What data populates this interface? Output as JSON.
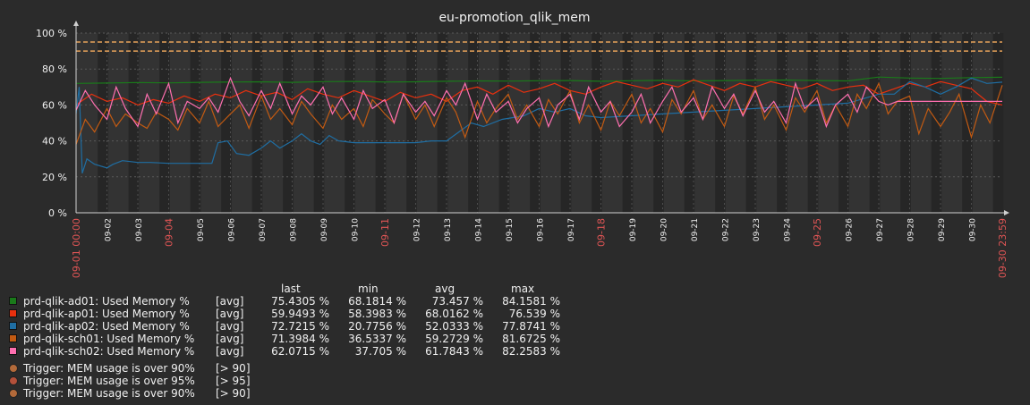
{
  "chart_data": {
    "type": "line",
    "title": "eu-promotion_qlik_mem",
    "ylim": [
      0,
      100
    ],
    "y_ticks": [
      "0 %",
      "20 %",
      "40 %",
      "60 %",
      "80 %",
      "100 %"
    ],
    "y_tick_values": [
      0,
      20,
      40,
      60,
      80,
      100
    ],
    "x_start_label": "09-01 00:00",
    "x_end_label": "09-30 23:59",
    "x_day_labels": [
      "09-02",
      "09-03",
      "09-04",
      "09-05",
      "09-06",
      "09-07",
      "09-08",
      "09-09",
      "09-10",
      "09-11",
      "09-12",
      "09-13",
      "09-14",
      "09-15",
      "09-16",
      "09-17",
      "09-18",
      "09-19",
      "09-20",
      "09-21",
      "09-22",
      "09-23",
      "09-24",
      "09-25",
      "09-26",
      "09-27",
      "09-28",
      "09-29",
      "09-30"
    ],
    "x_highlight_labels": [
      "09-01 00:00",
      "09-04",
      "09-11",
      "09-18",
      "09-25",
      "09-30 23:59"
    ],
    "grid": true,
    "thresholds": [
      {
        "value": 95,
        "color": "#e8a35a"
      },
      {
        "value": 90,
        "color": "#e8a35a"
      }
    ],
    "series": [
      {
        "name": "prd-qlik-ad01: Used Memory %",
        "color": "#1a7a1a",
        "x": [
          0,
          1,
          2,
          3,
          4,
          5,
          6,
          7,
          8,
          9,
          10,
          11,
          12,
          13,
          14,
          15,
          16,
          17,
          18,
          19,
          20,
          21,
          22,
          23,
          24,
          25,
          26,
          27,
          28,
          29,
          30
        ],
        "y": [
          72,
          72.2,
          72.5,
          72.3,
          72.6,
          72.8,
          72.9,
          72.6,
          73,
          73.1,
          72.8,
          72.9,
          73.2,
          73.4,
          73.3,
          73.5,
          73.6,
          73.2,
          73.5,
          73.7,
          73.4,
          73.6,
          73.8,
          73.9,
          73.6,
          73.4,
          75.5,
          75,
          74.8,
          75.2,
          75.4
        ]
      },
      {
        "name": "prd-qlik-ap01: Used Memory %",
        "color": "#e8300e",
        "x": [
          0,
          0.5,
          1,
          1.5,
          2,
          2.5,
          3,
          3.5,
          4,
          4.5,
          5,
          5.5,
          6,
          6.5,
          7,
          7.5,
          8,
          8.5,
          9,
          9.5,
          10,
          10.5,
          11,
          11.5,
          12,
          12.5,
          13,
          13.5,
          14,
          14.5,
          15,
          15.5,
          16,
          16.5,
          17,
          17.5,
          18,
          18.5,
          19,
          19.5,
          20,
          20.5,
          21,
          21.5,
          22,
          22.5,
          23,
          23.5,
          24,
          24.5,
          25,
          25.5,
          26,
          26.5,
          27,
          27.5,
          28,
          28.5,
          29,
          29.5,
          30
        ],
        "y": [
          60,
          66,
          62,
          64,
          60,
          63,
          61,
          65,
          62,
          66,
          64,
          68,
          65,
          67,
          63,
          69,
          66,
          64,
          68,
          65,
          62,
          67,
          64,
          66,
          62,
          68,
          70,
          66,
          71,
          67,
          69,
          72,
          68,
          66,
          70,
          73,
          71,
          69,
          72,
          70,
          74,
          71,
          68,
          72,
          70,
          73,
          71,
          69,
          72,
          68,
          70,
          71,
          66,
          69,
          72,
          70,
          73,
          71,
          69,
          62,
          60
        ]
      },
      {
        "name": "prd-qlik-ap02: Used Memory %",
        "color": "#1f6ea3",
        "x": [
          0,
          0.1,
          0.2,
          0.35,
          0.6,
          1,
          1.2,
          1.5,
          2,
          2.4,
          3,
          3.5,
          4,
          4.4,
          4.6,
          4.9,
          5.2,
          5.6,
          6,
          6.3,
          6.6,
          7,
          7.3,
          7.6,
          7.9,
          8.2,
          8.5,
          9,
          10,
          11,
          11.5,
          12,
          12.4,
          12.8,
          13.2,
          13.8,
          14.5,
          15,
          15.5,
          16,
          16.5,
          17,
          18,
          19,
          20,
          21,
          22,
          23,
          24,
          25,
          26,
          26.5,
          27,
          27.5,
          28,
          28.5,
          29,
          29.5,
          30
        ],
        "y": [
          55,
          70,
          22,
          30,
          27,
          25,
          27,
          29,
          28,
          28,
          27.5,
          27.5,
          27.5,
          27.5,
          39,
          40,
          33,
          32,
          36,
          40,
          36,
          40,
          44,
          40,
          38,
          43,
          40,
          39,
          39,
          39,
          40,
          40,
          45,
          50,
          48,
          52,
          54,
          58,
          56,
          58,
          54,
          53,
          54,
          55,
          56,
          57,
          58,
          59,
          60,
          61,
          66,
          66,
          73,
          70,
          66,
          70,
          75,
          72,
          72.7
        ]
      },
      {
        "name": "prd-qlik-sch01: Used Memory %",
        "color": "#c25a12",
        "x": [
          0,
          0.3,
          0.6,
          1,
          1.3,
          1.6,
          2,
          2.3,
          2.6,
          3,
          3.3,
          3.6,
          4,
          4.3,
          4.6,
          5,
          5.3,
          5.6,
          6,
          6.3,
          6.6,
          7,
          7.3,
          7.6,
          8,
          8.3,
          8.6,
          9,
          9.3,
          9.6,
          10,
          10.3,
          10.6,
          11,
          11.3,
          11.6,
          12,
          12.3,
          12.6,
          13,
          13.3,
          13.6,
          14,
          14.3,
          14.6,
          15,
          15.3,
          15.6,
          16,
          16.3,
          16.6,
          17,
          17.3,
          17.6,
          18,
          18.3,
          18.6,
          19,
          19.3,
          19.6,
          20,
          20.3,
          20.6,
          21,
          21.3,
          21.6,
          22,
          22.3,
          22.6,
          23,
          23.3,
          23.6,
          24,
          24.3,
          24.6,
          25,
          25.3,
          25.6,
          26,
          26.3,
          26.6,
          27,
          27.3,
          27.6,
          28,
          28.3,
          28.6,
          29,
          29.3,
          29.6,
          30
        ],
        "y": [
          38,
          52,
          45,
          58,
          48,
          55,
          50,
          47,
          56,
          52,
          46,
          58,
          50,
          62,
          48,
          55,
          60,
          47,
          65,
          52,
          58,
          49,
          62,
          55,
          47,
          60,
          52,
          58,
          48,
          63,
          55,
          50,
          66,
          52,
          60,
          48,
          64,
          56,
          42,
          62,
          50,
          58,
          66,
          52,
          60,
          48,
          63,
          55,
          68,
          50,
          60,
          46,
          62,
          54,
          66,
          50,
          58,
          45,
          63,
          55,
          68,
          52,
          60,
          48,
          65,
          55,
          70,
          52,
          60,
          46,
          64,
          56,
          68,
          50,
          60,
          48,
          66,
          58,
          72,
          55,
          62,
          65,
          44,
          58,
          48,
          56,
          66,
          42,
          60,
          50,
          71
        ]
      },
      {
        "name": "prd-qlik-sch02: Used Memory %",
        "color": "#ff6fb0",
        "x": [
          0,
          0.3,
          0.6,
          1,
          1.3,
          1.6,
          2,
          2.3,
          2.6,
          3,
          3.3,
          3.6,
          4,
          4.3,
          4.6,
          5,
          5.3,
          5.6,
          6,
          6.3,
          6.6,
          7,
          7.3,
          7.6,
          8,
          8.3,
          8.6,
          9,
          9.3,
          9.6,
          10,
          10.3,
          10.6,
          11,
          11.3,
          11.6,
          12,
          12.3,
          12.6,
          13,
          13.3,
          13.6,
          14,
          14.3,
          14.6,
          15,
          15.3,
          15.6,
          16,
          16.3,
          16.6,
          17,
          17.3,
          17.6,
          18,
          18.3,
          18.6,
          19,
          19.3,
          19.6,
          20,
          20.3,
          20.6,
          21,
          21.3,
          21.6,
          22,
          22.3,
          22.6,
          23,
          23.3,
          23.6,
          24,
          24.3,
          24.6,
          25,
          25.3,
          25.6,
          26,
          26.3,
          26.6,
          27,
          27.3,
          27.6,
          28,
          28.3,
          28.6,
          29,
          29.3,
          29.6,
          30
        ],
        "y": [
          57,
          68,
          60,
          52,
          70,
          58,
          48,
          66,
          55,
          72,
          50,
          62,
          58,
          64,
          56,
          75,
          62,
          54,
          68,
          58,
          72,
          55,
          65,
          60,
          70,
          55,
          64,
          52,
          68,
          58,
          63,
          50,
          66,
          56,
          62,
          54,
          68,
          60,
          72,
          52,
          66,
          56,
          62,
          50,
          58,
          64,
          48,
          60,
          66,
          52,
          70,
          56,
          62,
          48,
          56,
          66,
          50,
          62,
          70,
          56,
          64,
          52,
          70,
          58,
          66,
          54,
          68,
          56,
          62,
          50,
          72,
          58,
          64,
          48,
          60,
          66,
          56,
          70,
          62,
          60,
          62,
          62,
          62,
          62,
          62,
          62,
          62,
          62,
          62,
          62,
          62
        ]
      }
    ],
    "legend_columns": [
      "last",
      "min",
      "avg",
      "max"
    ],
    "legend_rows": [
      {
        "name": "prd-qlik-ad01: Used Memory %",
        "fn": "[avg]",
        "last": "75.4305 %",
        "min": "68.1814 %",
        "avg": "73.457 %",
        "max": "84.1581 %",
        "color": "#1a7a1a"
      },
      {
        "name": "prd-qlik-ap01: Used Memory %",
        "fn": "[avg]",
        "last": "59.9493 %",
        "min": "58.3983 %",
        "avg": "68.0162 %",
        "max": "76.539 %",
        "color": "#e8300e"
      },
      {
        "name": "prd-qlik-ap02: Used Memory %",
        "fn": "[avg]",
        "last": "72.7215 %",
        "min": "20.7756 %",
        "avg": "52.0333 %",
        "max": "77.8741 %",
        "color": "#1f6ea3"
      },
      {
        "name": "prd-qlik-sch01: Used Memory %",
        "fn": "[avg]",
        "last": "71.3984 %",
        "min": "36.5337 %",
        "avg": "59.2729 %",
        "max": "81.6725 %",
        "color": "#c25a12"
      },
      {
        "name": "prd-qlik-sch02: Used Memory %",
        "fn": "[avg]",
        "last": "62.0715 %",
        "min": "37.705 %",
        "avg": "61.7843 %",
        "max": "82.2583 %",
        "color": "#ff6fb0"
      }
    ],
    "triggers": [
      {
        "label": "Trigger: MEM usage is over 90%",
        "cond": "[> 90]",
        "color": "#b36a3a"
      },
      {
        "label": "Trigger: MEM usage is over 95%",
        "cond": "[> 95]",
        "color": "#b3503a"
      },
      {
        "label": "Trigger: MEM usage is over 90%",
        "cond": "[> 90]",
        "color": "#b36a3a"
      }
    ]
  }
}
